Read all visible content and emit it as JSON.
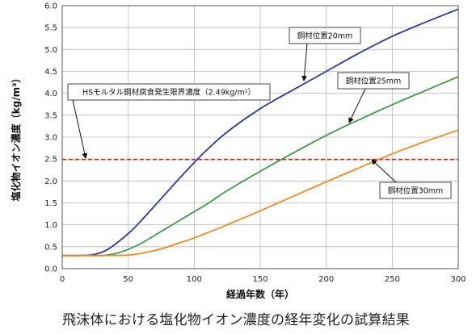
{
  "chart_data": {
    "type": "line",
    "xlabel": "経過年数（年）",
    "ylabel": "塩化物イオン濃度（kg/m³）",
    "xlim": [
      0,
      300
    ],
    "ylim": [
      0,
      6.0
    ],
    "x_ticks": [
      0,
      50,
      100,
      150,
      200,
      250,
      300
    ],
    "y_ticks": [
      "0.0",
      "0.5",
      "1.0",
      "1.5",
      "2.0",
      "2.5",
      "3.0",
      "3.5",
      "4.0",
      "4.5",
      "5.0",
      "5.5",
      "6.0"
    ],
    "grid": true,
    "series": [
      {
        "name": "鋼材位置20mm",
        "color": "#2b3a9a",
        "x": [
          0,
          15,
          25,
          35,
          50,
          60,
          75,
          90,
          100,
          110,
          125,
          150,
          175,
          200,
          225,
          250,
          275,
          300
        ],
        "y": [
          0.3,
          0.3,
          0.33,
          0.45,
          0.8,
          1.1,
          1.6,
          2.1,
          2.42,
          2.72,
          3.12,
          3.65,
          4.08,
          4.5,
          4.92,
          5.3,
          5.62,
          5.92
        ]
      },
      {
        "name": "鋼材位置25mm",
        "color": "#3f9a4a",
        "x": [
          0,
          20,
          30,
          40,
          50,
          60,
          75,
          90,
          100,
          110,
          125,
          150,
          175,
          200,
          225,
          250,
          275,
          300
        ],
        "y": [
          0.3,
          0.3,
          0.3,
          0.34,
          0.44,
          0.58,
          0.85,
          1.12,
          1.3,
          1.48,
          1.78,
          2.22,
          2.64,
          3.04,
          3.4,
          3.74,
          4.06,
          4.38
        ]
      },
      {
        "name": "鋼材位置30mm",
        "color": "#f08a1e",
        "x": [
          0,
          30,
          50,
          60,
          75,
          90,
          100,
          125,
          150,
          175,
          200,
          225,
          250,
          275,
          300
        ],
        "y": [
          0.3,
          0.3,
          0.31,
          0.35,
          0.45,
          0.6,
          0.7,
          1.0,
          1.32,
          1.65,
          1.98,
          2.3,
          2.62,
          2.9,
          3.16
        ]
      }
    ],
    "threshold": {
      "label": "HSモルタル鋼材腐食発生限界濃度（2.49kg/m²）",
      "value": 2.49,
      "color": "#d42020"
    }
  },
  "caption": "飛沫体における塩化物イオン濃度の経年変化の試算結果"
}
